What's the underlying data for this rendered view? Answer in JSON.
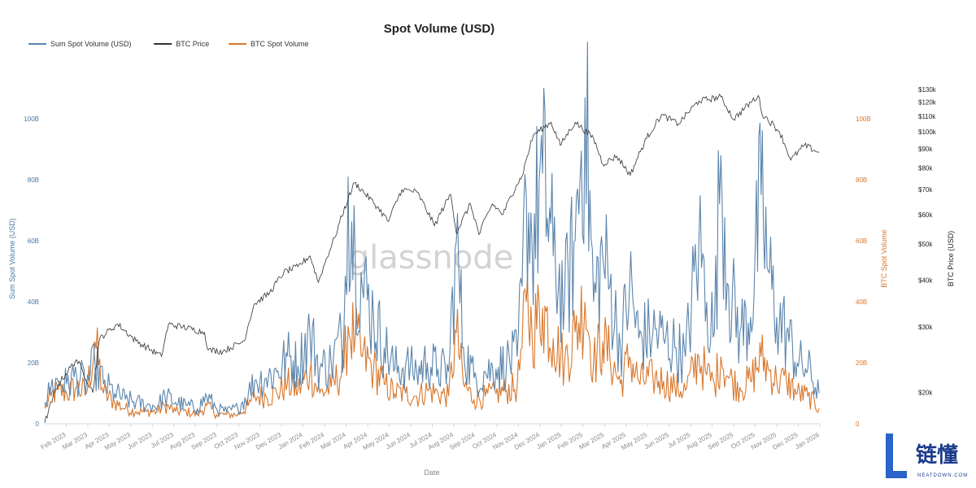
{
  "chart_data": {
    "type": "line",
    "title": "Spot Volume (USD)",
    "xlabel": "Date",
    "ylabel_left": "Sum Spot Volume (USD)",
    "ylabel_right": "BTC Spot Volume",
    "ylabel_price": "BTC Price (USD)",
    "legend_position": "top-left",
    "grid": false,
    "watermark": "glassnode",
    "y_left": {
      "range": [
        0,
        110
      ],
      "ticks": [
        "0",
        "20B",
        "40B",
        "60B",
        "80B",
        "100B"
      ],
      "values": [
        0,
        20,
        40,
        60,
        80,
        100
      ]
    },
    "y_right": {
      "range": [
        0,
        110
      ],
      "ticks": [
        "0",
        "20B",
        "40B",
        "60B",
        "80B",
        "100B"
      ],
      "values": [
        0,
        20,
        40,
        60,
        80,
        100
      ]
    },
    "y_price": {
      "scale": "log",
      "range": [
        15000,
        140000
      ],
      "ticks": [
        "$20k",
        "$30k",
        "$40k",
        "$50k",
        "$60k",
        "$70k",
        "$80k",
        "$90k",
        "$100k",
        "$110k",
        "$120k",
        "$130k"
      ],
      "values": [
        20000,
        30000,
        40000,
        50000,
        60000,
        70000,
        80000,
        90000,
        100000,
        110000,
        120000,
        130000
      ]
    },
    "x_ticks": [
      "Feb 2023",
      "Mar 2023",
      "Apr 2023",
      "May 2023",
      "Jun 2023",
      "Jul 2023",
      "Aug 2023",
      "Sep 2023",
      "Oct 2023",
      "Nov 2023",
      "Dec 2023",
      "Jan 2024",
      "Feb 2024",
      "Mar 2024",
      "Apr 2024",
      "May 2024",
      "Jun 2024",
      "Jul 2024",
      "Aug 2024",
      "Sep 2024",
      "Oct 2024",
      "Nov 2024",
      "Dec 2024",
      "Jan 2025",
      "Feb 2025",
      "Mar 2025",
      "Apr 2025",
      "May 2025",
      "Jun 2025",
      "Jul 2025",
      "Aug 2025",
      "Sep 2025",
      "Oct 2025",
      "Nov 2025",
      "Dec 2025",
      "Jan 2026"
    ],
    "series": [
      {
        "name": "Sum Spot Volume (USD)",
        "axis": "left",
        "color": "#5b85ad",
        "points": [
          [
            "2023-01-01",
            7
          ],
          [
            "2023-01-10",
            12
          ],
          [
            "2023-01-20",
            14
          ],
          [
            "2023-02-01",
            13
          ],
          [
            "2023-02-15",
            16
          ],
          [
            "2023-03-01",
            13
          ],
          [
            "2023-03-13",
            20
          ],
          [
            "2023-03-25",
            13
          ],
          [
            "2023-04-10",
            10
          ],
          [
            "2023-04-25",
            8
          ],
          [
            "2023-05-10",
            7
          ],
          [
            "2023-05-25",
            6
          ],
          [
            "2023-06-10",
            6
          ],
          [
            "2023-06-20",
            9
          ],
          [
            "2023-07-05",
            7
          ],
          [
            "2023-07-20",
            6
          ],
          [
            "2023-08-05",
            5
          ],
          [
            "2023-08-18",
            9
          ],
          [
            "2023-09-01",
            5
          ],
          [
            "2023-09-15",
            4
          ],
          [
            "2023-10-01",
            5
          ],
          [
            "2023-10-16",
            10
          ],
          [
            "2023-10-25",
            14
          ],
          [
            "2023-11-10",
            15
          ],
          [
            "2023-11-25",
            17
          ],
          [
            "2023-12-10",
            22
          ],
          [
            "2023-12-25",
            19
          ],
          [
            "2024-01-11",
            30
          ],
          [
            "2024-01-25",
            18
          ],
          [
            "2024-02-10",
            20
          ],
          [
            "2024-02-28",
            30
          ],
          [
            "2024-03-05",
            81
          ],
          [
            "2024-03-15",
            55
          ],
          [
            "2024-03-25",
            45
          ],
          [
            "2024-04-10",
            35
          ],
          [
            "2024-04-25",
            25
          ],
          [
            "2024-05-10",
            18
          ],
          [
            "2024-05-25",
            19
          ],
          [
            "2024-06-10",
            17
          ],
          [
            "2024-06-25",
            20
          ],
          [
            "2024-07-10",
            18
          ],
          [
            "2024-07-25",
            17
          ],
          [
            "2024-08-05",
            60
          ],
          [
            "2024-08-15",
            25
          ],
          [
            "2024-08-30",
            15
          ],
          [
            "2024-09-15",
            17
          ],
          [
            "2024-09-30",
            18
          ],
          [
            "2024-10-15",
            20
          ],
          [
            "2024-10-30",
            22
          ],
          [
            "2024-11-06",
            45
          ],
          [
            "2024-11-12",
            75
          ],
          [
            "2024-11-20",
            60
          ],
          [
            "2024-12-05",
            82
          ],
          [
            "2024-12-20",
            55
          ],
          [
            "2025-01-05",
            40
          ],
          [
            "2025-01-20",
            60
          ],
          [
            "2025-02-03",
            107
          ],
          [
            "2025-02-15",
            40
          ],
          [
            "2025-02-28",
            55
          ],
          [
            "2025-03-10",
            45
          ],
          [
            "2025-03-25",
            25
          ],
          [
            "2025-04-07",
            45
          ],
          [
            "2025-04-20",
            28
          ],
          [
            "2025-05-10",
            30
          ],
          [
            "2025-05-25",
            28
          ],
          [
            "2025-06-10",
            25
          ],
          [
            "2025-06-25",
            22
          ],
          [
            "2025-07-14",
            60
          ],
          [
            "2025-07-25",
            40
          ],
          [
            "2025-08-05",
            30
          ],
          [
            "2025-08-14",
            88
          ],
          [
            "2025-08-25",
            45
          ],
          [
            "2025-09-10",
            30
          ],
          [
            "2025-09-25",
            35
          ],
          [
            "2025-10-10",
            75
          ],
          [
            "2025-10-20",
            50
          ],
          [
            "2025-11-01",
            35
          ],
          [
            "2025-11-15",
            30
          ],
          [
            "2025-11-30",
            20
          ],
          [
            "2025-12-15",
            18
          ],
          [
            "2025-12-31",
            10
          ]
        ]
      },
      {
        "name": "BTC Price",
        "axis": "price",
        "color": "#333333",
        "points": [
          [
            "2023-01-01",
            16600
          ],
          [
            "2023-01-20",
            21000
          ],
          [
            "2023-02-15",
            24500
          ],
          [
            "2023-03-10",
            20000
          ],
          [
            "2023-03-20",
            28000
          ],
          [
            "2023-04-14",
            30500
          ],
          [
            "2023-05-10",
            27500
          ],
          [
            "2023-06-15",
            25000
          ],
          [
            "2023-06-25",
            30500
          ],
          [
            "2023-07-15",
            30000
          ],
          [
            "2023-08-15",
            29000
          ],
          [
            "2023-08-20",
            26000
          ],
          [
            "2023-09-10",
            25800
          ],
          [
            "2023-10-10",
            27500
          ],
          [
            "2023-10-24",
            34500
          ],
          [
            "2023-11-15",
            37000
          ],
          [
            "2023-12-05",
            42000
          ],
          [
            "2023-12-25",
            43500
          ],
          [
            "2024-01-11",
            46500
          ],
          [
            "2024-01-23",
            39500
          ],
          [
            "2024-02-15",
            52000
          ],
          [
            "2024-03-05",
            66000
          ],
          [
            "2024-03-14",
            73000
          ],
          [
            "2024-04-15",
            63000
          ],
          [
            "2024-05-01",
            57500
          ],
          [
            "2024-05-20",
            70000
          ],
          [
            "2024-06-10",
            69000
          ],
          [
            "2024-07-05",
            56000
          ],
          [
            "2024-07-28",
            68000
          ],
          [
            "2024-08-05",
            53500
          ],
          [
            "2024-08-25",
            64000
          ],
          [
            "2024-09-06",
            53000
          ],
          [
            "2024-09-25",
            64000
          ],
          [
            "2024-10-10",
            60000
          ],
          [
            "2024-10-29",
            72000
          ],
          [
            "2024-11-06",
            76000
          ],
          [
            "2024-11-22",
            98000
          ],
          [
            "2024-12-17",
            106000
          ],
          [
            "2024-12-30",
            92000
          ],
          [
            "2025-01-20",
            106000
          ],
          [
            "2025-02-15",
            96000
          ],
          [
            "2025-02-28",
            82000
          ],
          [
            "2025-03-20",
            86000
          ],
          [
            "2025-04-08",
            76500
          ],
          [
            "2025-05-01",
            96000
          ],
          [
            "2025-05-22",
            111000
          ],
          [
            "2025-06-15",
            105000
          ],
          [
            "2025-07-14",
            121000
          ],
          [
            "2025-08-14",
            124000
          ],
          [
            "2025-09-01",
            108000
          ],
          [
            "2025-10-06",
            125000
          ],
          [
            "2025-10-11",
            112000
          ],
          [
            "2025-11-05",
            100000
          ],
          [
            "2025-11-21",
            84000
          ],
          [
            "2025-12-10",
            92000
          ],
          [
            "2025-12-31",
            88000
          ]
        ]
      },
      {
        "name": "BTC Spot Volume",
        "axis": "right",
        "color": "#d9772c",
        "points": [
          [
            "2023-01-01",
            5
          ],
          [
            "2023-01-10",
            9
          ],
          [
            "2023-01-20",
            11
          ],
          [
            "2023-02-01",
            10
          ],
          [
            "2023-02-15",
            12
          ],
          [
            "2023-03-01",
            10
          ],
          [
            "2023-03-13",
            27
          ],
          [
            "2023-03-25",
            10
          ],
          [
            "2023-04-10",
            7
          ],
          [
            "2023-04-25",
            5
          ],
          [
            "2023-05-10",
            4
          ],
          [
            "2023-05-25",
            4
          ],
          [
            "2023-06-10",
            4
          ],
          [
            "2023-06-20",
            6
          ],
          [
            "2023-07-05",
            4
          ],
          [
            "2023-07-20",
            4
          ],
          [
            "2023-08-05",
            3
          ],
          [
            "2023-08-18",
            6
          ],
          [
            "2023-09-01",
            3
          ],
          [
            "2023-09-15",
            3
          ],
          [
            "2023-10-01",
            3
          ],
          [
            "2023-10-16",
            6
          ],
          [
            "2023-10-25",
            9
          ],
          [
            "2023-11-10",
            9
          ],
          [
            "2023-11-25",
            10
          ],
          [
            "2023-12-10",
            13
          ],
          [
            "2023-12-25",
            11
          ],
          [
            "2024-01-11",
            17
          ],
          [
            "2024-01-25",
            10
          ],
          [
            "2024-02-10",
            12
          ],
          [
            "2024-02-28",
            18
          ],
          [
            "2024-03-05",
            32
          ],
          [
            "2024-03-15",
            28
          ],
          [
            "2024-03-25",
            22
          ],
          [
            "2024-04-10",
            18
          ],
          [
            "2024-04-25",
            13
          ],
          [
            "2024-05-10",
            10
          ],
          [
            "2024-05-25",
            10
          ],
          [
            "2024-06-10",
            9
          ],
          [
            "2024-06-25",
            11
          ],
          [
            "2024-07-10",
            10
          ],
          [
            "2024-07-25",
            9
          ],
          [
            "2024-08-05",
            30
          ],
          [
            "2024-08-15",
            13
          ],
          [
            "2024-08-30",
            8
          ],
          [
            "2024-09-15",
            9
          ],
          [
            "2024-09-30",
            10
          ],
          [
            "2024-10-15",
            11
          ],
          [
            "2024-10-30",
            12
          ],
          [
            "2024-11-06",
            25
          ],
          [
            "2024-11-12",
            40
          ],
          [
            "2024-11-20",
            30
          ],
          [
            "2024-12-05",
            38
          ],
          [
            "2024-12-20",
            28
          ],
          [
            "2025-01-05",
            20
          ],
          [
            "2025-01-20",
            30
          ],
          [
            "2025-02-03",
            40
          ],
          [
            "2025-02-15",
            20
          ],
          [
            "2025-02-28",
            27
          ],
          [
            "2025-03-10",
            22
          ],
          [
            "2025-03-25",
            13
          ],
          [
            "2025-04-07",
            22
          ],
          [
            "2025-04-20",
            14
          ],
          [
            "2025-05-10",
            15
          ],
          [
            "2025-05-25",
            14
          ],
          [
            "2025-06-10",
            12
          ],
          [
            "2025-06-25",
            11
          ],
          [
            "2025-07-14",
            22
          ],
          [
            "2025-07-25",
            16
          ],
          [
            "2025-08-05",
            13
          ],
          [
            "2025-08-14",
            22
          ],
          [
            "2025-08-25",
            15
          ],
          [
            "2025-09-10",
            12
          ],
          [
            "2025-09-25",
            14
          ],
          [
            "2025-10-10",
            22
          ],
          [
            "2025-10-20",
            18
          ],
          [
            "2025-11-01",
            14
          ],
          [
            "2025-11-15",
            14
          ],
          [
            "2025-11-30",
            10
          ],
          [
            "2025-12-15",
            9
          ],
          [
            "2025-12-31",
            5
          ]
        ]
      }
    ]
  },
  "logo": {
    "text": "链懂",
    "subtext": "NEATDOWN.COM"
  }
}
